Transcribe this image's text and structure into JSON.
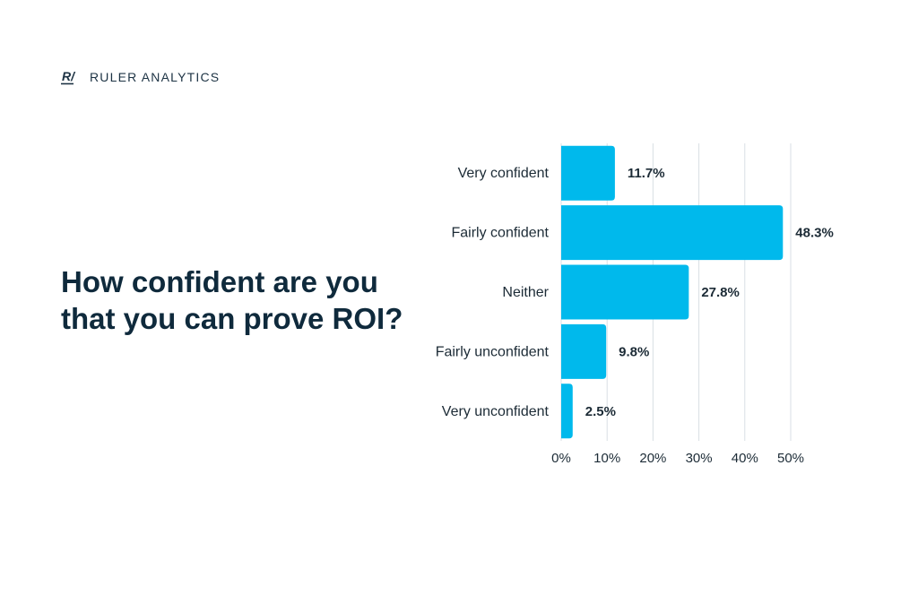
{
  "brand": {
    "mark_text": "R/",
    "name": "RULER ANALYTICS"
  },
  "headline": {
    "line1": "How confident are you",
    "line2": "that you can prove ROI?"
  },
  "colors": {
    "bar": "#00b9ec",
    "text": "#1c2b36",
    "headline": "#0f2a3c",
    "grid": "#d9dfe4"
  },
  "chart_data": {
    "type": "bar",
    "orientation": "horizontal",
    "title": "How confident are you that you can prove ROI?",
    "categories": [
      "Very confident",
      "Fairly confident",
      "Neither",
      "Fairly unconfident",
      "Very unconfident"
    ],
    "values": [
      11.7,
      48.3,
      27.8,
      9.8,
      2.5
    ],
    "value_labels": [
      "11.7%",
      "48.3%",
      "27.8%",
      "9.8%",
      "2.5%"
    ],
    "xlim": [
      0,
      50
    ],
    "xticks": [
      0,
      10,
      20,
      30,
      40,
      50
    ],
    "xtick_labels": [
      "0%",
      "10%",
      "20%",
      "30%",
      "40%",
      "50%"
    ],
    "xlabel": "",
    "ylabel": "",
    "grid": true
  }
}
